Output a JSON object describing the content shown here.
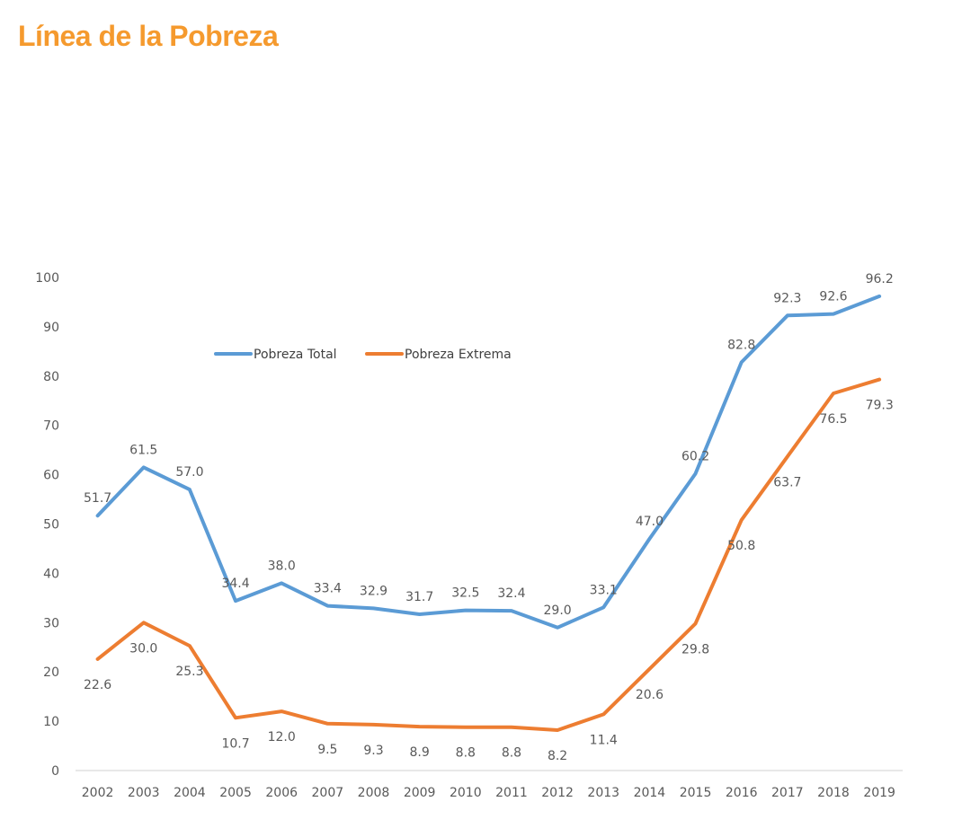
{
  "page": {
    "title": "Línea de la Pobreza"
  },
  "chart_data": {
    "type": "line",
    "categories": [
      "2002",
      "2003",
      "2004",
      "2005",
      "2006",
      "2007",
      "2008",
      "2009",
      "2010",
      "2011",
      "2012",
      "2013",
      "2014",
      "2015",
      "2016",
      "2017",
      "2018",
      "2019"
    ],
    "series": [
      {
        "name": "Pobreza Total",
        "color": "#5B9BD5",
        "values": [
          51.7,
          61.5,
          57.0,
          34.4,
          38.0,
          33.4,
          32.9,
          31.7,
          32.5,
          32.4,
          29.0,
          33.1,
          47.0,
          60.2,
          82.8,
          92.3,
          92.6,
          96.2
        ],
        "labels": [
          "51.7",
          "61.5",
          "57.0",
          "34.4",
          "38.0",
          "33.4",
          "32.9",
          "31.7",
          "32.5",
          "32.4",
          "29.0",
          "33.1",
          "47.0",
          "60.2",
          "82.8",
          "92.3",
          "92.6",
          "96.2"
        ],
        "label_position": "above"
      },
      {
        "name": "Pobreza Extrema",
        "color": "#ED7D31",
        "values": [
          22.6,
          30.0,
          25.3,
          10.7,
          12.0,
          9.5,
          9.3,
          8.9,
          8.8,
          8.8,
          8.2,
          11.4,
          20.6,
          29.8,
          50.8,
          63.7,
          76.5,
          79.3
        ],
        "labels": [
          "22.6",
          "30.0",
          "25.3",
          "10.7",
          "12.0",
          "9.5",
          "9.3",
          "8.9",
          "8.8",
          "8.8",
          "8.2",
          "11.4",
          "20.6",
          "29.8",
          "50.8",
          "63.7",
          "76.5",
          "79.3"
        ],
        "label_position": "below"
      }
    ],
    "ylim": [
      0,
      100
    ],
    "yticks": [
      "0",
      "10",
      "20",
      "30",
      "40",
      "50",
      "60",
      "70",
      "80",
      "90",
      "100"
    ],
    "grid": false,
    "legend_position": "top-left-inside"
  }
}
